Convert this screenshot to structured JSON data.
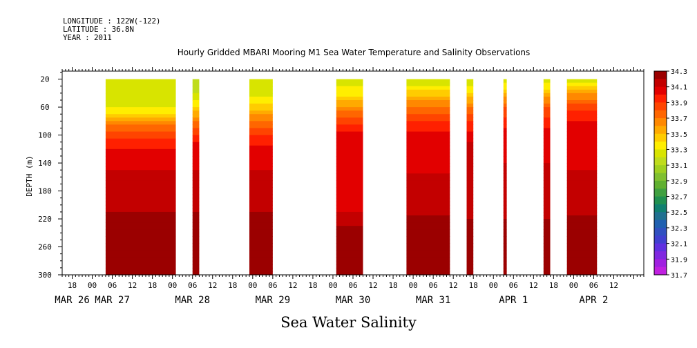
{
  "header": {
    "longitude": "LONGITUDE : 122W(-122)",
    "latitude": "LATITUDE : 36.8N",
    "year": "YEAR : 2011"
  },
  "chart_data": {
    "type": "heatmap",
    "title": "Hourly Gridded MBARI Mooring M1 Sea Water Temperature and Salinity Observations",
    "xlabel": "Sea Water Salinity",
    "ylabel": "DEPTH (m)",
    "ylim": [
      300,
      0
    ],
    "yticks": [
      20,
      60,
      100,
      140,
      180,
      220,
      260,
      300
    ],
    "x_range_hours": [
      -9,
      165
    ],
    "x_hour_ticks": [
      {
        "h": -6,
        "label": "18"
      },
      {
        "h": 0,
        "label": "00"
      },
      {
        "h": 6,
        "label": "06"
      },
      {
        "h": 12,
        "label": "12"
      },
      {
        "h": 18,
        "label": "18"
      },
      {
        "h": 24,
        "label": "00"
      },
      {
        "h": 30,
        "label": "06"
      },
      {
        "h": 36,
        "label": "12"
      },
      {
        "h": 42,
        "label": "18"
      },
      {
        "h": 48,
        "label": "00"
      },
      {
        "h": 54,
        "label": "06"
      },
      {
        "h": 60,
        "label": "12"
      },
      {
        "h": 66,
        "label": "18"
      },
      {
        "h": 72,
        "label": "00"
      },
      {
        "h": 78,
        "label": "06"
      },
      {
        "h": 84,
        "label": "12"
      },
      {
        "h": 90,
        "label": "18"
      },
      {
        "h": 96,
        "label": "00"
      },
      {
        "h": 102,
        "label": "06"
      },
      {
        "h": 108,
        "label": "12"
      },
      {
        "h": 114,
        "label": "18"
      },
      {
        "h": 120,
        "label": "00"
      },
      {
        "h": 126,
        "label": "06"
      },
      {
        "h": 132,
        "label": "12"
      },
      {
        "h": 138,
        "label": "18"
      },
      {
        "h": 144,
        "label": "00"
      },
      {
        "h": 150,
        "label": "06"
      },
      {
        "h": 156,
        "label": "12"
      }
    ],
    "x_day_labels": [
      {
        "h": -6,
        "label": "MAR 26"
      },
      {
        "h": 6,
        "label": "MAR 27"
      },
      {
        "h": 30,
        "label": "MAR 28"
      },
      {
        "h": 54,
        "label": "MAR 29"
      },
      {
        "h": 78,
        "label": "MAR 30"
      },
      {
        "h": 102,
        "label": "MAR 31"
      },
      {
        "h": 126,
        "label": "APR  1"
      },
      {
        "h": 150,
        "label": "APR  2"
      }
    ],
    "colorbar": {
      "levels": [
        34.3,
        34.2,
        34.1,
        34.0,
        33.9,
        33.8,
        33.7,
        33.6,
        33.5,
        33.4,
        33.3,
        33.2,
        33.1,
        33.0,
        32.9,
        32.8,
        32.7,
        32.6,
        32.5,
        32.4,
        32.3,
        32.2,
        32.1,
        32.0,
        31.9,
        31.8,
        31.7
      ],
      "labels": [
        "34.3",
        "34.1",
        "33.9",
        "33.7",
        "33.5",
        "33.3",
        "33.1",
        "32.9",
        "32.7",
        "32.5",
        "32.3",
        "32.1",
        "31.9",
        "31.7"
      ],
      "colors": [
        "#9b0000",
        "#c30000",
        "#e20000",
        "#ff2000",
        "#ff4400",
        "#ff6600",
        "#ff8800",
        "#ffaa00",
        "#ffcc00",
        "#ffee00",
        "#d8e400",
        "#bfdc1c",
        "#a0d020",
        "#80c030",
        "#60b030",
        "#40a040",
        "#209050",
        "#108070",
        "#207090",
        "#2060b0",
        "#3050c0",
        "#4040d0",
        "#6030e0",
        "#8028e0",
        "#a020e0",
        "#c020e0"
      ]
    },
    "data_segments": [
      {
        "start_h": 4,
        "end_h": 25,
        "profile": [
          [
            20,
            33.2
          ],
          [
            55,
            33.2
          ],
          [
            70,
            33.4
          ],
          [
            80,
            33.6
          ],
          [
            95,
            33.8
          ],
          [
            120,
            34.0
          ],
          [
            150,
            34.1
          ],
          [
            210,
            34.2
          ],
          [
            235,
            34.3
          ],
          [
            285,
            34.2
          ],
          [
            300,
            34.2
          ]
        ]
      },
      {
        "start_h": 30,
        "end_h": 32,
        "profile": [
          [
            20,
            33.1
          ],
          [
            40,
            33.2
          ],
          [
            60,
            33.4
          ],
          [
            80,
            33.7
          ],
          [
            110,
            34.0
          ],
          [
            150,
            34.1
          ],
          [
            210,
            34.2
          ],
          [
            235,
            34.3
          ],
          [
            285,
            34.2
          ],
          [
            300,
            34.2
          ]
        ]
      },
      {
        "start_h": 47,
        "end_h": 54,
        "profile": [
          [
            20,
            33.2
          ],
          [
            45,
            33.3
          ],
          [
            65,
            33.5
          ],
          [
            80,
            33.7
          ],
          [
            100,
            33.9
          ],
          [
            125,
            34.05
          ],
          [
            150,
            34.1
          ],
          [
            210,
            34.2
          ],
          [
            235,
            34.3
          ],
          [
            285,
            34.2
          ],
          [
            300,
            34.2
          ]
        ]
      },
      {
        "start_h": 73,
        "end_h": 81,
        "profile": [
          [
            20,
            33.2
          ],
          [
            45,
            33.4
          ],
          [
            60,
            33.6
          ],
          [
            75,
            33.8
          ],
          [
            95,
            34.0
          ],
          [
            210,
            34.1
          ],
          [
            230,
            34.2
          ],
          [
            240,
            34.3
          ],
          [
            285,
            34.2
          ],
          [
            300,
            34.2
          ]
        ]
      },
      {
        "start_h": 94,
        "end_h": 107,
        "profile": [
          [
            20,
            33.2
          ],
          [
            30,
            33.3
          ],
          [
            45,
            33.5
          ],
          [
            60,
            33.7
          ],
          [
            80,
            33.9
          ],
          [
            100,
            34.05
          ],
          [
            210,
            34.15
          ],
          [
            230,
            34.3
          ],
          [
            285,
            34.3
          ],
          [
            300,
            34.2
          ]
        ]
      },
      {
        "start_h": 112,
        "end_h": 114,
        "profile": [
          [
            20,
            33.2
          ],
          [
            40,
            33.4
          ],
          [
            60,
            33.7
          ],
          [
            80,
            33.9
          ],
          [
            110,
            34.1
          ],
          [
            210,
            34.15
          ],
          [
            235,
            34.3
          ],
          [
            285,
            34.2
          ],
          [
            300,
            34.2
          ]
        ]
      },
      {
        "start_h": 123,
        "end_h": 124,
        "profile": [
          [
            20,
            33.2
          ],
          [
            40,
            33.5
          ],
          [
            60,
            33.8
          ],
          [
            90,
            34.0
          ],
          [
            140,
            34.1
          ],
          [
            210,
            34.15
          ],
          [
            235,
            34.3
          ],
          [
            285,
            34.2
          ],
          [
            300,
            34.2
          ]
        ]
      },
      {
        "start_h": 135,
        "end_h": 137,
        "profile": [
          [
            20,
            33.2
          ],
          [
            40,
            33.5
          ],
          [
            60,
            33.8
          ],
          [
            90,
            34.0
          ],
          [
            140,
            34.1
          ],
          [
            210,
            34.15
          ],
          [
            235,
            34.3
          ],
          [
            285,
            34.2
          ],
          [
            300,
            34.2
          ]
        ]
      },
      {
        "start_h": 142,
        "end_h": 151,
        "profile": [
          [
            20,
            33.25
          ],
          [
            35,
            33.5
          ],
          [
            50,
            33.7
          ],
          [
            65,
            33.9
          ],
          [
            90,
            34.05
          ],
          [
            210,
            34.15
          ],
          [
            230,
            34.3
          ],
          [
            285,
            34.3
          ],
          [
            300,
            34.2
          ]
        ]
      }
    ]
  }
}
